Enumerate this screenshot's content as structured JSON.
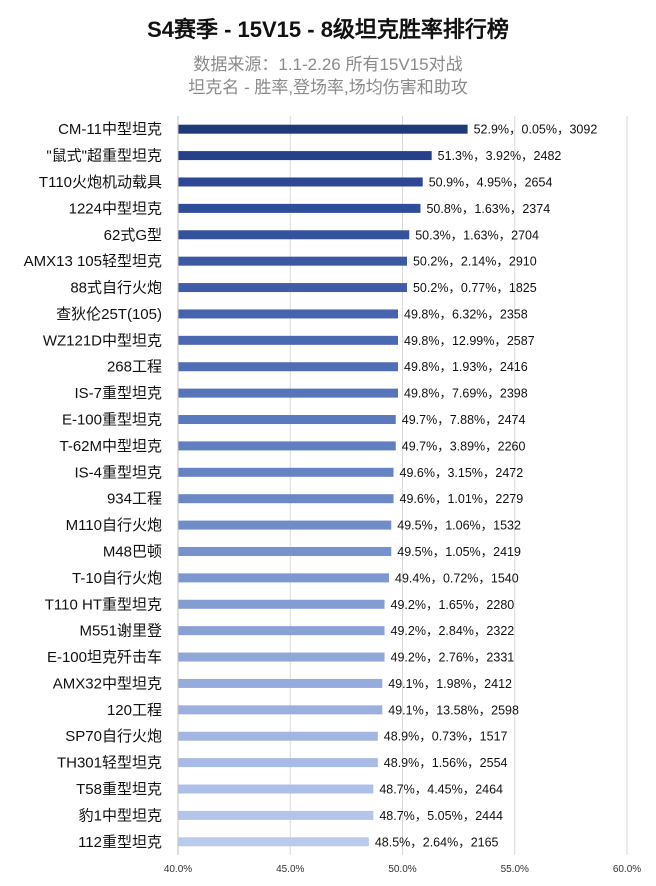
{
  "chart_data": {
    "type": "bar",
    "orientation": "horizontal",
    "title": "S4赛季 - 15V15 - 8级坦克胜率排行榜",
    "subtitles": [
      "数据来源：1.1-2.26 所有15V15对战",
      "坦克名 - 胜率,登场率,场均伤害和助攻"
    ],
    "xlim": [
      40,
      60
    ],
    "xticks": [
      "40.0%",
      "45.0%",
      "50.0%",
      "55.0%",
      "60.0%"
    ],
    "grid": true,
    "categories": [
      "CM-11中型坦克",
      "\"鼠式\"超重型坦克",
      "T110火炮机动载具",
      "1224中型坦克",
      "62式G型",
      "AMX13 105轻型坦克",
      "88式自行火炮",
      "查狄伦25T(105)",
      "WZ121D中型坦克",
      "268工程",
      "IS-7重型坦克",
      "E-100重型坦克",
      "T-62M中型坦克",
      "IS-4重型坦克",
      "934工程",
      "M110自行火炮",
      "M48巴顿",
      "T-10自行火炮",
      "T110 HT重型坦克",
      "M551谢里登",
      "E-100坦克歼击车",
      "AMX32中型坦克",
      "120工程",
      "SP70自行火炮",
      "TH301轻型坦克",
      "T58重型坦克",
      "豹1中型坦克",
      "112重型坦克"
    ],
    "values": [
      52.9,
      51.3,
      50.9,
      50.8,
      50.3,
      50.2,
      50.2,
      49.8,
      49.8,
      49.8,
      49.8,
      49.7,
      49.7,
      49.6,
      49.6,
      49.5,
      49.5,
      49.4,
      49.2,
      49.2,
      49.2,
      49.1,
      49.1,
      48.9,
      48.9,
      48.7,
      48.7,
      48.5
    ],
    "labels": [
      "52.9%，0.05%，3092",
      "51.3%，3.92%，2482",
      "50.9%，4.95%，2654",
      "50.8%，1.63%，2374",
      "50.3%，1.63%，2704",
      "50.2%，2.14%，2910",
      "50.2%，0.77%，1825",
      "49.8%，6.32%，2358",
      "49.8%，12.99%，2587",
      "49.8%，1.93%，2416",
      "49.8%，7.69%，2398",
      "49.7%，7.88%，2474",
      "49.7%，3.89%，2260",
      "49.6%，3.15%，2472",
      "49.6%，1.01%，2279",
      "49.5%，1.06%，1532",
      "49.5%，1.05%，2419",
      "49.4%，0.72%，1540",
      "49.2%，1.65%，2280",
      "49.2%，2.84%，2322",
      "49.2%，2.76%，2331",
      "49.1%，1.98%，2412",
      "49.1%，13.58%，2598",
      "48.9%，0.73%，1517",
      "48.9%，1.56%，2554",
      "48.7%，4.45%，2464",
      "48.7%，5.05%，2444",
      "48.5%，2.64%，2165"
    ],
    "colors": [
      "#1f3a7a",
      "#26418a",
      "#2c4894",
      "#304d99",
      "#35529e",
      "#3b58a3",
      "#405ea8",
      "#4664ad",
      "#4b69b2",
      "#506eb6",
      "#5574ba",
      "#5b79bd",
      "#607ec0",
      "#6683c3",
      "#6b88c6",
      "#718dc9",
      "#7792cc",
      "#7d97cf",
      "#839cd2",
      "#89a1d5",
      "#8fa6d8",
      "#95abdb",
      "#9bb0de",
      "#a2b6e1",
      "#a8bbe4",
      "#aec0e7",
      "#b4c5ea",
      "#bacaec"
    ]
  }
}
